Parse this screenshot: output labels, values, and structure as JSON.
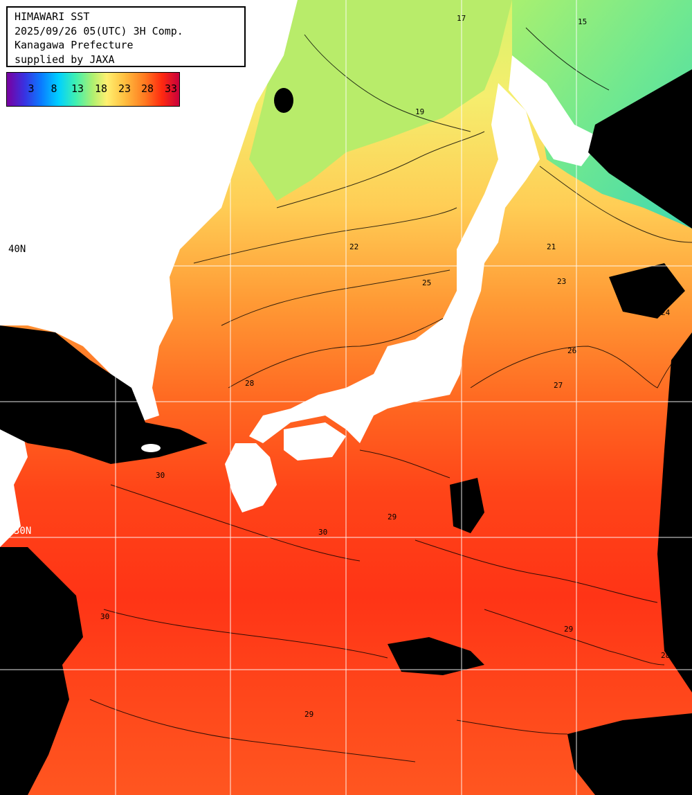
{
  "header": {
    "title": "HIMAWARI SST",
    "datetime": "2025/09/26 05(UTC) 3H Comp.",
    "region": "Kanagawa Prefecture",
    "credit": "supplied by JAXA"
  },
  "legend": {
    "ticks": [
      "3",
      "8",
      "13",
      "18",
      "23",
      "28",
      "33"
    ]
  },
  "grid_labels": {
    "lat_40": "40N",
    "lat_30": "30N"
  },
  "contour_labels": [
    "15",
    "17",
    "19",
    "21",
    "22",
    "23",
    "24",
    "25",
    "26",
    "27",
    "28",
    "29",
    "30"
  ],
  "colors": {
    "land": "#ffffff",
    "cloud": "#000000",
    "grid": "#ffffff",
    "contour": "#000000"
  }
}
